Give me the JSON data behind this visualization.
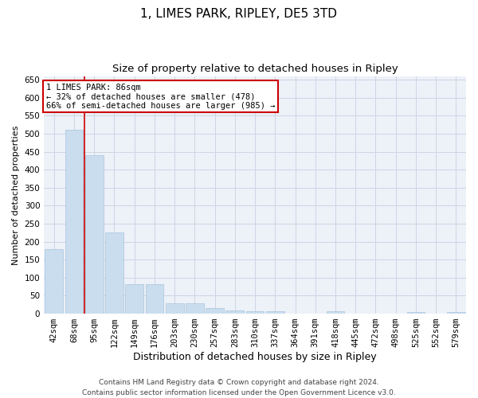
{
  "title": "1, LIMES PARK, RIPLEY, DE5 3TD",
  "subtitle": "Size of property relative to detached houses in Ripley",
  "xlabel": "Distribution of detached houses by size in Ripley",
  "ylabel": "Number of detached properties",
  "bar_color": "#c9ddef",
  "bar_edgecolor": "#aac4db",
  "grid_color": "#cdd5e5",
  "bg_color": "#edf1f8",
  "categories": [
    "42sqm",
    "68sqm",
    "95sqm",
    "122sqm",
    "149sqm",
    "176sqm",
    "203sqm",
    "230sqm",
    "257sqm",
    "283sqm",
    "310sqm",
    "337sqm",
    "364sqm",
    "391sqm",
    "418sqm",
    "445sqm",
    "472sqm",
    "498sqm",
    "525sqm",
    "552sqm",
    "579sqm"
  ],
  "values": [
    180,
    510,
    440,
    225,
    83,
    83,
    28,
    28,
    15,
    10,
    7,
    6,
    0,
    0,
    6,
    0,
    0,
    0,
    5,
    0,
    5
  ],
  "vline_index": 2,
  "vline_color": "#cc0000",
  "annotation_line1": "1 LIMES PARK: 86sqm",
  "annotation_line2": "← 32% of detached houses are smaller (478)",
  "annotation_line3": "66% of semi-detached houses are larger (985) →",
  "annotation_box_color": "#ffffff",
  "annotation_box_edgecolor": "#cc0000",
  "ylim": [
    0,
    660
  ],
  "yticks": [
    0,
    50,
    100,
    150,
    200,
    250,
    300,
    350,
    400,
    450,
    500,
    550,
    600,
    650
  ],
  "footer": "Contains HM Land Registry data © Crown copyright and database right 2024.\nContains public sector information licensed under the Open Government Licence v3.0.",
  "title_fontsize": 11,
  "subtitle_fontsize": 9.5,
  "xlabel_fontsize": 9,
  "ylabel_fontsize": 8,
  "tick_fontsize": 7.5,
  "annot_fontsize": 7.5,
  "footer_fontsize": 6.5
}
